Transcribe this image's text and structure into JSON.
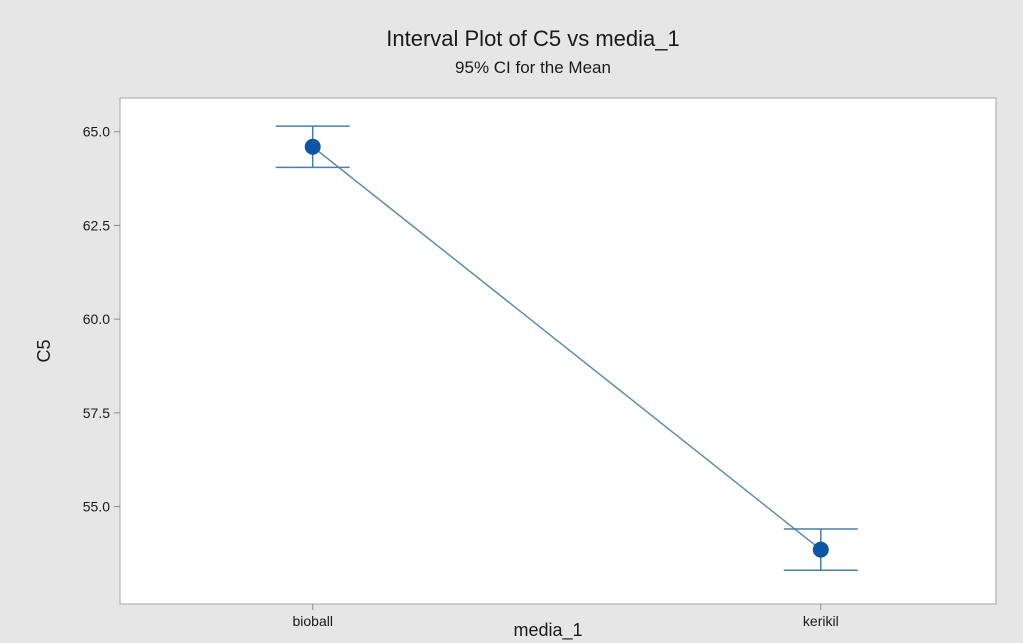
{
  "chart_data": {
    "type": "interval",
    "title": "Interval Plot of C5 vs media_1",
    "subtitle": "95% CI for the Mean",
    "xlabel": "media_1",
    "ylabel": "C5",
    "categories": [
      "bioball",
      "kerikil"
    ],
    "means": [
      64.6,
      53.85
    ],
    "ci_lower": [
      64.05,
      53.3
    ],
    "ci_upper": [
      65.15,
      54.4
    ],
    "ylim": [
      52.4,
      65.9
    ],
    "yticks": [
      "65.0",
      "62.5",
      "60.0",
      "57.5",
      "55.0"
    ],
    "connect_means": true,
    "grid": false,
    "legend": "none",
    "colors": {
      "background": "#e6e6e6",
      "plot_area": "#ffffff",
      "frame": "#a6a6a6",
      "line": "#5b8db3",
      "marker": "#0b57a4",
      "interval": "#4a7fa8"
    }
  }
}
